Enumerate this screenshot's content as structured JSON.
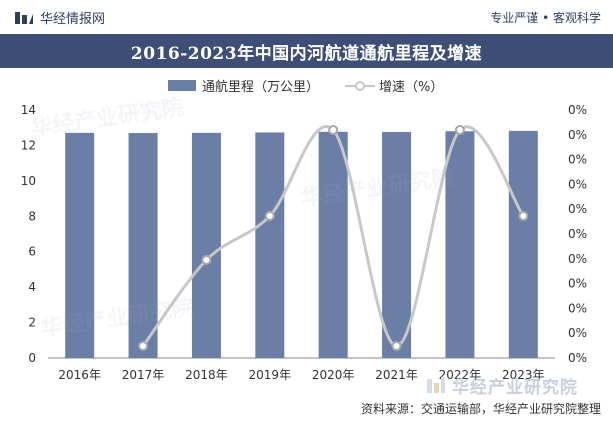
{
  "header": {
    "brand": "华经情报网",
    "slogan": "专业严谨 • 客观科学"
  },
  "chart_data": {
    "type": "bar",
    "title": "2016-2023年中国内河航道通航里程及增速",
    "categories": [
      "2016年",
      "2017年",
      "2018年",
      "2019年",
      "2020年",
      "2021年",
      "2022年",
      "2023年"
    ],
    "series": [
      {
        "name": "通航里程（万公里）",
        "type": "bar",
        "axis": "left",
        "values": [
          12.71,
          12.7,
          12.71,
          12.73,
          12.77,
          12.76,
          12.8,
          12.82
        ]
      },
      {
        "name": "增速（%）",
        "type": "line",
        "axis": "right",
        "values": [
          null,
          0.0,
          0.0,
          0.0,
          0.0,
          0.0,
          0.0,
          0.0
        ]
      }
    ],
    "y_left": {
      "min": 0,
      "max": 14,
      "ticks": [
        "0",
        "2",
        "4",
        "6",
        "8",
        "10",
        "12",
        "14"
      ]
    },
    "y_right": {
      "ticks": [
        "0%",
        "0%",
        "0%",
        "0%",
        "0%",
        "0%",
        "0%",
        "0%",
        "0%",
        "0%",
        "0%"
      ]
    },
    "legend_position": "top",
    "grid": false,
    "colors": {
      "bar": "#6b7ea6",
      "line": "#c8c8c8"
    }
  },
  "footer": {
    "source": "资料来源：交通运输部，华经产业研究院整理",
    "logo_text": "华经产业研究院"
  },
  "watermark_text": "华经产业研究院"
}
